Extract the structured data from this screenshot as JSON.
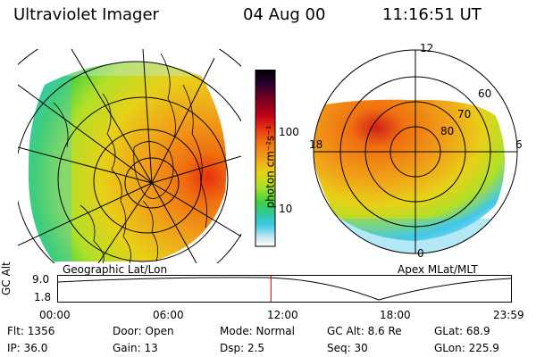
{
  "header": {
    "instrument": "Ultraviolet Imager",
    "date": "04 Aug 00",
    "time": "11:16:51 UT"
  },
  "left_panel": {
    "label": "Geographic Lat/Lon"
  },
  "right_panel": {
    "label": "Apex MLat/MLT",
    "mlt_labels": {
      "top": "12",
      "left": "18",
      "right": "6",
      "bottom": "0"
    },
    "lat_labels": [
      "60",
      "70",
      "80"
    ]
  },
  "colorbar": {
    "axis_title": "photon cm⁻²s⁻¹",
    "ticks": [
      "100",
      "10"
    ],
    "colors": [
      "#000000",
      "#2a0030",
      "#7a0020",
      "#c00018",
      "#e83010",
      "#f07010",
      "#f0a018",
      "#e8d018",
      "#b0e028",
      "#40d040",
      "#30c8a0",
      "#40c8e8",
      "#c8e8f0",
      "#ffffff"
    ]
  },
  "altitude_strip": {
    "ylabel": "GC Alt",
    "yticks": [
      "9.0",
      "1.8"
    ],
    "xticks": [
      "00:00",
      "06:00",
      "12:00",
      "18:00",
      "23:59"
    ],
    "marker_time": "11:16:51",
    "marker_color": "#cc0000"
  },
  "info": {
    "flt": "Flt: 1356",
    "ip": "IP: 36.0",
    "door": "Door: Open",
    "gain": "Gain: 13",
    "mode": "Mode: Normal",
    "dsp": "Dsp:      2.5",
    "gcalt": "GC Alt: 8.6 Re",
    "seq": "Seq: 30",
    "glat": "GLat:   68.9",
    "glon": "GLon: 225.9"
  }
}
